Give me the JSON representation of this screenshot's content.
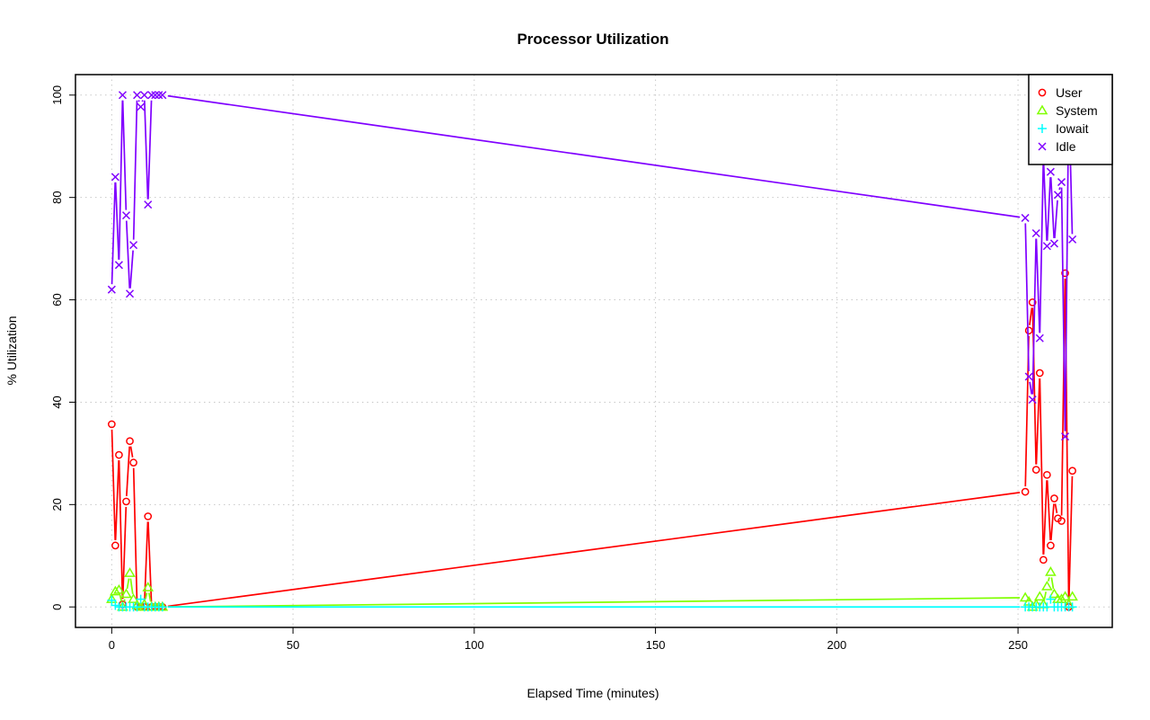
{
  "chart_data": {
    "type": "line",
    "title": "Processor Utilization",
    "xlabel": "Elapsed Time (minutes)",
    "ylabel": "% Utilization",
    "xlim": [
      -10,
      276
    ],
    "ylim": [
      -4,
      104
    ],
    "xticks": [
      0,
      50,
      100,
      150,
      200,
      250
    ],
    "yticks": [
      0,
      20,
      40,
      60,
      80,
      100
    ],
    "grid": true,
    "legend_position": "top-right",
    "x": [
      0,
      1,
      2,
      3,
      4,
      5,
      6,
      7,
      8,
      9,
      10,
      11,
      12,
      13,
      14,
      252,
      253,
      254,
      255,
      256,
      257,
      258,
      259,
      260,
      261,
      262,
      263,
      264,
      265
    ],
    "series": [
      {
        "name": "User",
        "color": "#ff0000",
        "marker": "circle",
        "values": [
          35.7,
          12,
          29.7,
          0.5,
          20.6,
          32.4,
          28.2,
          0,
          0,
          0,
          17.7,
          0,
          0,
          0,
          0,
          22.5,
          54,
          59.5,
          26.8,
          45.7,
          9.2,
          25.8,
          12,
          21.2,
          17.3,
          16.8,
          65.2,
          0,
          26.6
        ]
      },
      {
        "name": "System",
        "color": "#80ff00",
        "marker": "triangle",
        "values": [
          1.5,
          3,
          3.3,
          0,
          2.5,
          6.6,
          1.5,
          0.3,
          0,
          0.5,
          3.8,
          0,
          0,
          0,
          0,
          1.8,
          1,
          0,
          0.5,
          2,
          0.5,
          4,
          6.8,
          2.5,
          1.5,
          1.5,
          2,
          0.5,
          2
        ]
      },
      {
        "name": "Iowait",
        "color": "#00ffff",
        "marker": "plus",
        "values": [
          1.3,
          0.3,
          0,
          0,
          0,
          0,
          0,
          0,
          1.5,
          0,
          0,
          0,
          0,
          0,
          0,
          0,
          0,
          0,
          0,
          0,
          0,
          0,
          1.5,
          0,
          0,
          0,
          0,
          0,
          0
        ]
      },
      {
        "name": "Idle",
        "color": "#8000ff",
        "marker": "cross",
        "values": [
          62,
          84,
          66.8,
          100,
          76.5,
          61.2,
          70.7,
          100,
          97.7,
          100,
          78.6,
          100,
          100,
          100,
          100,
          76,
          45,
          40.5,
          73,
          52.5,
          88,
          70.5,
          85,
          71,
          80.5,
          83,
          33.3,
          100,
          71.8
        ]
      }
    ]
  }
}
